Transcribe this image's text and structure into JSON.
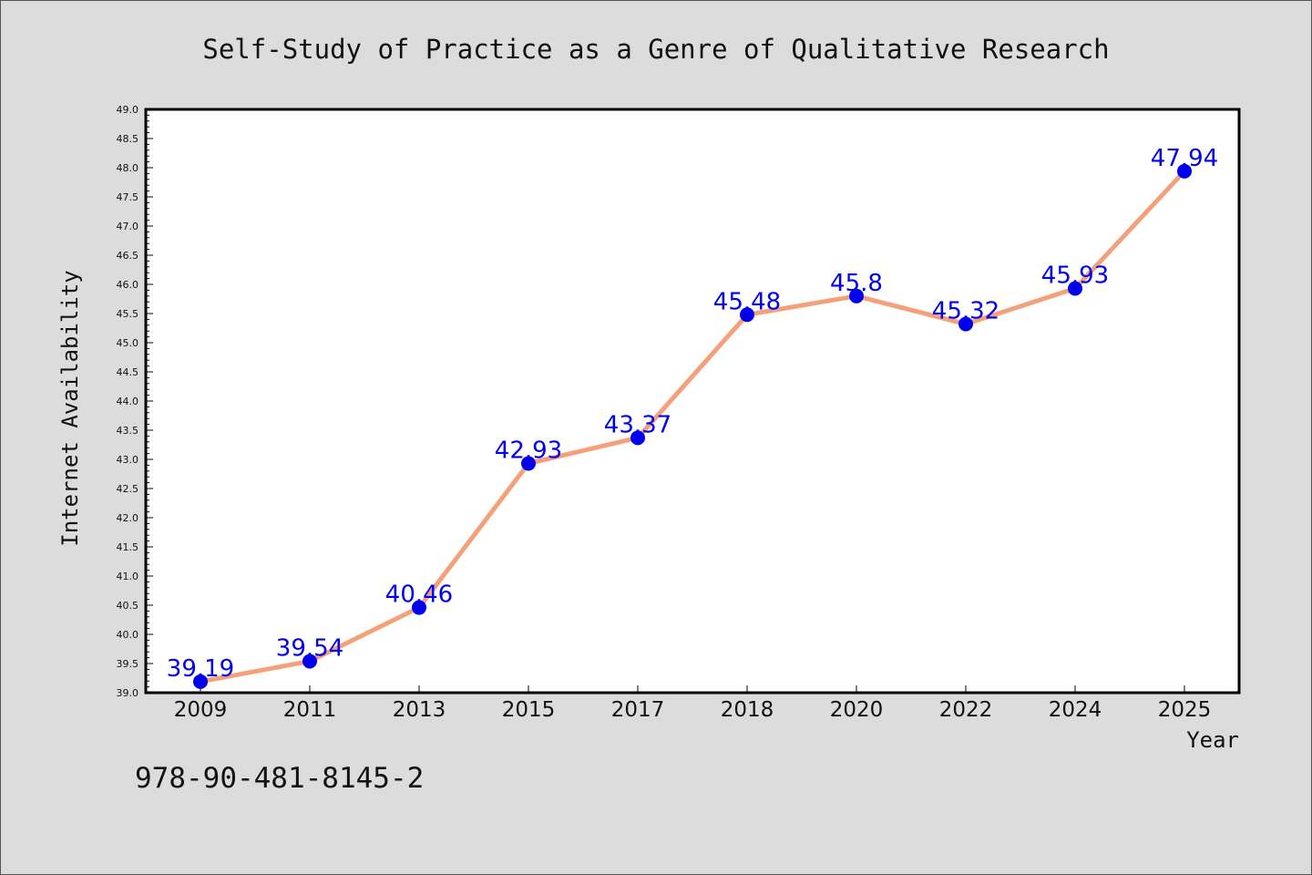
{
  "chart_data": {
    "type": "line",
    "title": "Self-Study of Practice as a Genre of Qualitative Research",
    "xlabel": "Year",
    "ylabel": "Internet Availability",
    "categories": [
      "2009",
      "2011",
      "2013",
      "2015",
      "2017",
      "2018",
      "2020",
      "2022",
      "2024",
      "2025"
    ],
    "values": [
      39.19,
      39.54,
      40.46,
      42.93,
      43.37,
      45.48,
      45.8,
      45.32,
      45.93,
      47.94
    ],
    "data_labels": [
      "39.19",
      "39.54",
      "40.46",
      "42.93",
      "43.37",
      "45.48",
      "45.8",
      "45.32",
      "45.93",
      "47.94"
    ],
    "ylim": [
      39.0,
      49.0
    ],
    "ytick_step": 0.5,
    "grid": false,
    "legend": "none",
    "line_color": "#f4a07a",
    "marker_color": "#0000ee",
    "label_color": "#0000ee"
  },
  "footer": {
    "isbn": "978-90-481-8145-2"
  }
}
